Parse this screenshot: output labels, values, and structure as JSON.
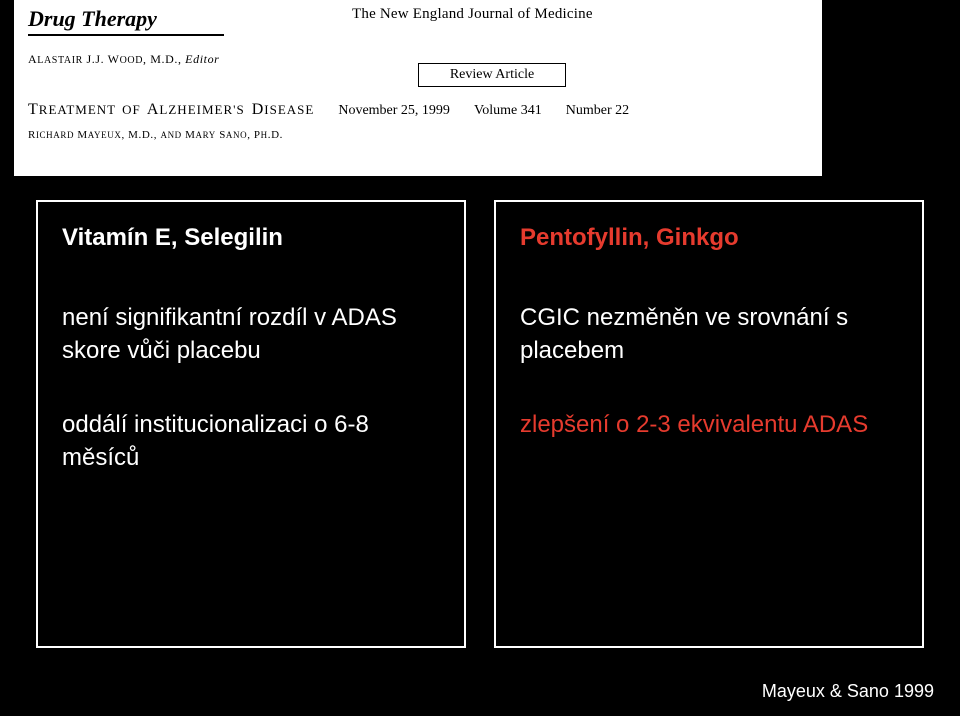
{
  "journal": {
    "section": "Drug Therapy",
    "journal_title": "The New England Journal of Medicine",
    "editor_line": "Alastair J.J. Wood, M.D., Editor",
    "review_box": "Review Article",
    "treatment_title": "Treatment of Alzheimer's Disease",
    "date": "November 25, 1999",
    "volume": "Volume 341",
    "number": "Number 22",
    "authors": "Richard Mayeux, M.D., and Mary Sano, Ph.D."
  },
  "columns": {
    "left": {
      "title": "Vitamín E, Selegilin",
      "p1": "není signifikantní rozdíl v ADAS skore vůči placebu",
      "p2": "oddálí institucionalizaci o 6-8 měsíců"
    },
    "right": {
      "title": "Pentofyllin, Ginkgo",
      "p1": "CGIC nezměněn ve srovnání s placebem",
      "p2": "zlepšení o 2-3 ekvivalentu ADAS"
    }
  },
  "citation": "Mayeux & Sano 1999",
  "colors": {
    "background": "#000000",
    "paper": "#ffffff",
    "border": "#ffffff",
    "text_light": "#ffffff",
    "accent_red": "#e63b2e"
  }
}
